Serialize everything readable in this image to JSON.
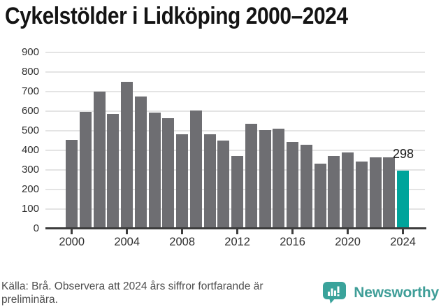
{
  "title": "Cykelstölder i Lidköping 2000–2024",
  "footer": {
    "line1": "Källa: Brå. Observera att 2024 års siffror fortfarande är",
    "line2": "preliminära."
  },
  "branding": {
    "name": "Newsworthy",
    "icon": "newsworthy-chart-bubble-icon",
    "color": "#3f9e98"
  },
  "colors": {
    "bar": "#6e6e72",
    "highlight": "#00a49b",
    "grid": "#e4e4e4",
    "axis": "#3d3d3d",
    "title_text": "#141414",
    "tick_text": "#2e2e2e",
    "footer_text": "#4e4e4e"
  },
  "chart_data": {
    "type": "bar",
    "title": "Cykelstölder i Lidköping 2000–2024",
    "categories": [
      2000,
      2001,
      2002,
      2003,
      2004,
      2005,
      2006,
      2007,
      2008,
      2009,
      2010,
      2011,
      2012,
      2013,
      2014,
      2015,
      2016,
      2017,
      2018,
      2019,
      2020,
      2021,
      2022,
      2023,
      2024
    ],
    "values": [
      452,
      597,
      700,
      585,
      751,
      676,
      592,
      566,
      484,
      604,
      484,
      451,
      370,
      536,
      505,
      512,
      444,
      430,
      332,
      373,
      388,
      343,
      366,
      363,
      298
    ],
    "highlight_year": 2024,
    "annotation": {
      "text": "298",
      "year": 2024,
      "value": 298
    },
    "xlabel": "",
    "ylabel": "",
    "ylim": [
      0,
      900
    ],
    "yticks": [
      0,
      100,
      200,
      300,
      400,
      500,
      600,
      700,
      800,
      900
    ],
    "xticks": [
      2000,
      2004,
      2008,
      2012,
      2016,
      2020,
      2024
    ],
    "grid": "horizontal",
    "legend": "none"
  }
}
